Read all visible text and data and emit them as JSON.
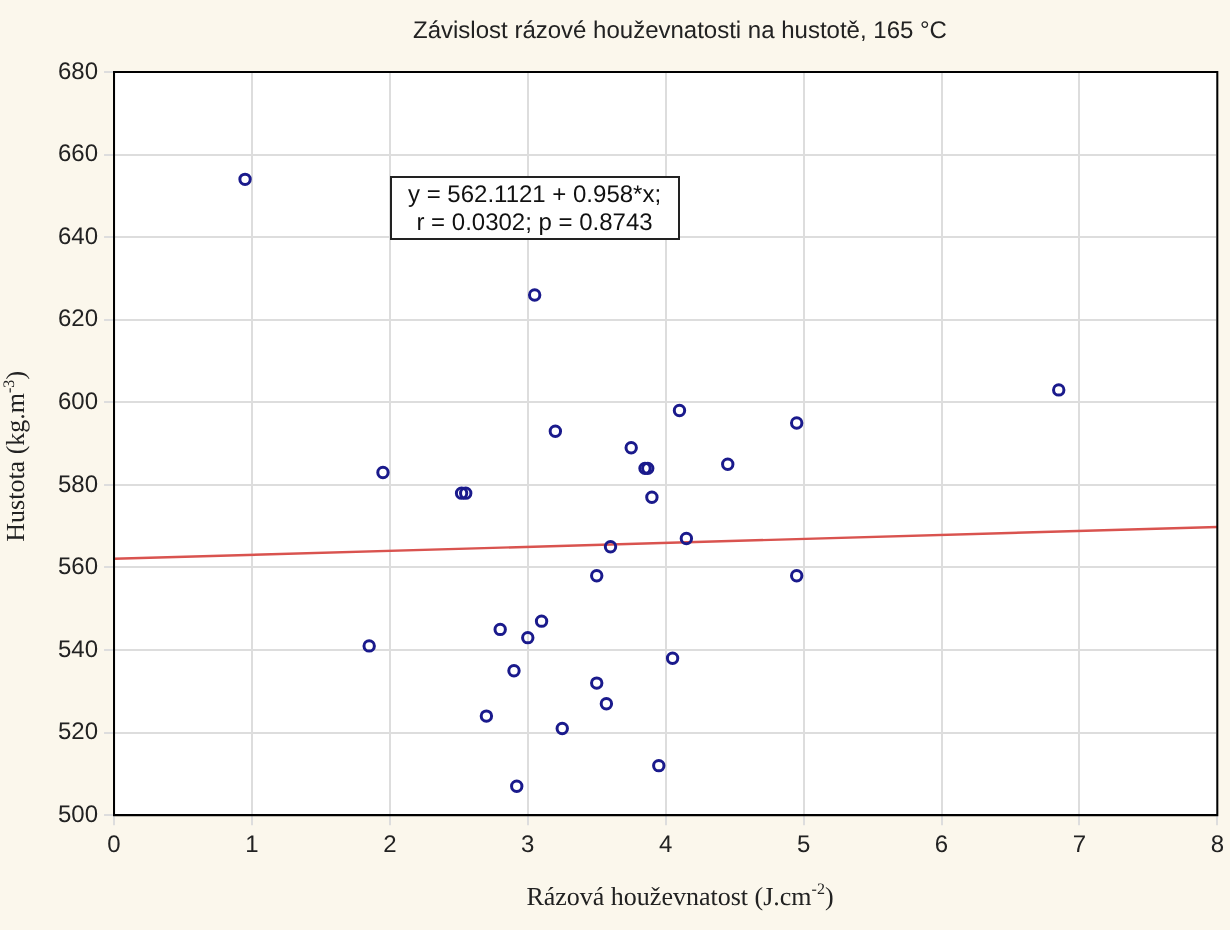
{
  "chart_data": {
    "type": "scatter",
    "title": "Závislost rázové houževnatosti na hustotě, 165 °C",
    "xlabel": "Rázová houževnatost (J.cm$^{-2}$)",
    "ylabel": "Hustota (kg.m$^{-3}$)",
    "annotations": [
      "y = 562.1121 + 0.958*x;\nr = 0.0302; p = 0.8743"
    ],
    "xlim": [
      0,
      8
    ],
    "xticks": [
      0,
      1,
      2,
      3,
      4,
      5,
      6,
      7,
      8
    ],
    "ylim": [
      500,
      680
    ],
    "yticks": [
      500,
      520,
      540,
      560,
      580,
      600,
      620,
      640,
      660,
      680
    ],
    "grid": true,
    "series": [
      {
        "type": "scatter",
        "marker": "circle",
        "color": "#1a1a8c",
        "x": [
          0.95,
          3.05,
          1.95,
          2.52,
          2.55,
          1.85,
          3.2,
          3.75,
          3.85,
          3.87,
          3.9,
          4.1,
          4.45,
          4.95,
          6.85,
          4.15,
          3.6,
          3.5,
          4.95,
          2.8,
          3.1,
          3.0,
          2.9,
          2.7,
          3.5,
          3.57,
          3.25,
          4.05,
          3.95,
          2.92
        ],
        "values": [
          654,
          626,
          583,
          578,
          578,
          541,
          593,
          589,
          584,
          584,
          577,
          598,
          585,
          595,
          603,
          567,
          565,
          558,
          558,
          545,
          547,
          543,
          535,
          524,
          532,
          527,
          521,
          538,
          512,
          507
        ]
      },
      {
        "type": "line",
        "marker": "none",
        "color": "#d9534f",
        "x": [
          0,
          8
        ],
        "values": [
          562.1,
          569.8
        ]
      }
    ]
  }
}
